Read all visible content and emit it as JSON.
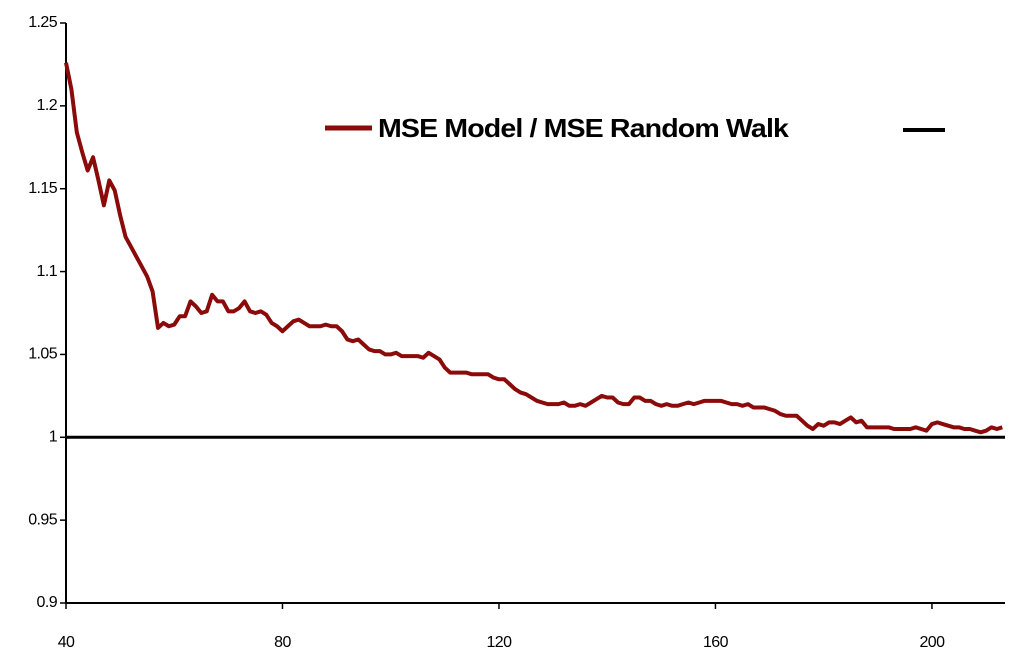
{
  "chart_data": {
    "type": "line",
    "x": [
      40,
      41,
      42,
      43,
      44,
      45,
      46,
      47,
      48,
      49,
      50,
      51,
      52,
      53,
      54,
      55,
      56,
      57,
      58,
      59,
      60,
      61,
      62,
      63,
      64,
      65,
      66,
      67,
      68,
      69,
      70,
      71,
      72,
      73,
      74,
      75,
      76,
      77,
      78,
      79,
      80,
      81,
      82,
      83,
      84,
      85,
      86,
      87,
      88,
      89,
      90,
      91,
      92,
      93,
      94,
      95,
      96,
      97,
      98,
      99,
      100,
      101,
      102,
      103,
      104,
      105,
      106,
      107,
      108,
      109,
      110,
      111,
      112,
      113,
      114,
      115,
      116,
      117,
      118,
      119,
      120,
      121,
      122,
      123,
      124,
      125,
      126,
      127,
      128,
      129,
      130,
      131,
      132,
      133,
      134,
      135,
      136,
      137,
      138,
      139,
      140,
      141,
      142,
      143,
      144,
      145,
      146,
      147,
      148,
      149,
      150,
      151,
      152,
      153,
      154,
      155,
      156,
      157,
      158,
      159,
      160,
      161,
      162,
      163,
      164,
      165,
      166,
      167,
      168,
      169,
      170,
      171,
      172,
      173,
      174,
      175,
      176,
      177,
      178,
      179,
      180,
      181,
      182,
      183,
      184,
      185,
      186,
      187,
      188,
      189,
      190,
      191,
      192,
      193,
      194,
      195,
      196,
      197,
      198,
      199,
      200,
      201,
      202,
      203,
      204,
      205,
      206,
      207,
      208,
      209,
      210,
      211,
      212,
      213
    ],
    "series": [
      {
        "name": "MSE Model / MSE Random Walk",
        "color": "#8b0a0a",
        "values": [
          1.226,
          1.21,
          1.184,
          1.172,
          1.161,
          1.169,
          1.155,
          1.14,
          1.155,
          1.149,
          1.134,
          1.121,
          1.115,
          1.109,
          1.103,
          1.097,
          1.088,
          1.066,
          1.069,
          1.067,
          1.068,
          1.073,
          1.073,
          1.082,
          1.079,
          1.075,
          1.076,
          1.086,
          1.082,
          1.082,
          1.076,
          1.076,
          1.078,
          1.082,
          1.076,
          1.075,
          1.076,
          1.074,
          1.069,
          1.067,
          1.064,
          1.067,
          1.07,
          1.071,
          1.069,
          1.067,
          1.067,
          1.067,
          1.068,
          1.067,
          1.067,
          1.064,
          1.059,
          1.058,
          1.059,
          1.056,
          1.053,
          1.052,
          1.052,
          1.05,
          1.05,
          1.051,
          1.049,
          1.049,
          1.049,
          1.049,
          1.048,
          1.051,
          1.049,
          1.047,
          1.042,
          1.039,
          1.039,
          1.039,
          1.039,
          1.038,
          1.038,
          1.038,
          1.038,
          1.036,
          1.035,
          1.035,
          1.032,
          1.029,
          1.027,
          1.026,
          1.024,
          1.022,
          1.021,
          1.02,
          1.02,
          1.02,
          1.021,
          1.019,
          1.019,
          1.02,
          1.019,
          1.021,
          1.023,
          1.025,
          1.024,
          1.024,
          1.021,
          1.02,
          1.02,
          1.024,
          1.024,
          1.022,
          1.022,
          1.02,
          1.019,
          1.02,
          1.019,
          1.019,
          1.02,
          1.021,
          1.02,
          1.021,
          1.022,
          1.022,
          1.022,
          1.022,
          1.021,
          1.02,
          1.02,
          1.019,
          1.02,
          1.018,
          1.018,
          1.018,
          1.017,
          1.016,
          1.014,
          1.013,
          1.013,
          1.013,
          1.01,
          1.007,
          1.005,
          1.008,
          1.007,
          1.009,
          1.009,
          1.008,
          1.01,
          1.012,
          1.009,
          1.01,
          1.006,
          1.006,
          1.006,
          1.006,
          1.006,
          1.005,
          1.005,
          1.005,
          1.005,
          1.006,
          1.005,
          1.004,
          1.008,
          1.009,
          1.008,
          1.007,
          1.006,
          1.006,
          1.005,
          1.005,
          1.004,
          1.003,
          1.004,
          1.006,
          1.005,
          1.006
        ]
      }
    ],
    "reference_line": {
      "value": 1,
      "color": "#000000"
    },
    "xlim": [
      40,
      213.5
    ],
    "xticks": [
      40,
      80,
      120,
      160,
      200
    ],
    "ylim": [
      0.9,
      1.25
    ],
    "yticks": [
      {
        "value": 0.9,
        "label": "0.9"
      },
      0.95,
      1,
      1.05,
      1.1,
      1.15,
      1.2,
      1.25
    ],
    "grid": false
  }
}
